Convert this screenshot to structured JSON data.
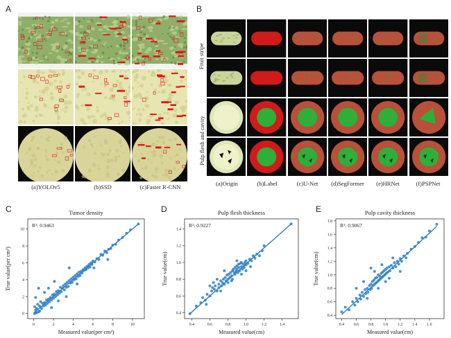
{
  "panel_letters": {
    "A": "A",
    "B": "B",
    "C": "C",
    "D": "D",
    "E": "E"
  },
  "panel_a": {
    "captions": [
      "(a)YOLOv5",
      "(b)SSD",
      "(c)Faster R-CNN"
    ],
    "rows": [
      "fruit-stripe",
      "pulp-surface",
      "pulp-cross-section"
    ]
  },
  "panel_b": {
    "row_labels": {
      "fruit_stripe": "Fruit stripe",
      "pulp": "Pulp flesh and cavity"
    },
    "captions": [
      "(a)Origin",
      "(b)Label",
      "(c)U-Net",
      "(d)SegFormer",
      "(e)HRNet",
      "(f)PSPNet"
    ],
    "colors": {
      "background": "#0a0a0a",
      "label_red": "#d11a1a",
      "pred_red": "#b8503a",
      "cavity_green": "#2fae3a"
    }
  },
  "chart_data": [
    {
      "type": "scatter",
      "title": "Tumor density",
      "xlabel": "Measured value(per cm²)",
      "ylabel": "True value(per cm²)",
      "annotation": "R²: 0.9463",
      "xlim": [
        -0.6,
        11.2
      ],
      "ylim": [
        -0.6,
        11.2
      ],
      "xticks": [
        0,
        2,
        4,
        6,
        8,
        10
      ],
      "yticks": [
        0,
        2,
        4,
        6,
        8,
        10
      ],
      "fit_line": [
        [
          0.0,
          0.05
        ],
        [
          10.6,
          10.6
        ]
      ],
      "points": [
        [
          0.1,
          0.0
        ],
        [
          0.2,
          0.1
        ],
        [
          0.2,
          0.4
        ],
        [
          0.3,
          0.6
        ],
        [
          0.1,
          0.8
        ],
        [
          0.4,
          1.1
        ],
        [
          0.5,
          0.2
        ],
        [
          0.6,
          0.9
        ],
        [
          0.3,
          0.1
        ],
        [
          0.7,
          1.4
        ],
        [
          0.8,
          0.6
        ],
        [
          0.9,
          1.2
        ],
        [
          1.0,
          0.9
        ],
        [
          1.1,
          1.3
        ],
        [
          1.2,
          1.0
        ],
        [
          0.6,
          0.3
        ],
        [
          1.3,
          1.6
        ],
        [
          1.4,
          1.2
        ],
        [
          1.5,
          1.7
        ],
        [
          1.6,
          1.4
        ],
        [
          1.7,
          1.9
        ],
        [
          1.8,
          1.6
        ],
        [
          1.9,
          2.2
        ],
        [
          2.0,
          1.8
        ],
        [
          2.1,
          2.3
        ],
        [
          2.2,
          2.0
        ],
        [
          2.3,
          2.6
        ],
        [
          2.4,
          2.2
        ],
        [
          2.5,
          2.7
        ],
        [
          2.6,
          2.4
        ],
        [
          2.7,
          3.1
        ],
        [
          2.8,
          2.6
        ],
        [
          2.9,
          3.0
        ],
        [
          3.0,
          3.3
        ],
        [
          3.1,
          2.8
        ],
        [
          3.2,
          3.5
        ],
        [
          3.3,
          3.1
        ],
        [
          3.4,
          3.7
        ],
        [
          3.5,
          3.2
        ],
        [
          3.6,
          3.9
        ],
        [
          3.7,
          3.6
        ],
        [
          3.8,
          4.1
        ],
        [
          3.9,
          3.7
        ],
        [
          4.0,
          4.3
        ],
        [
          4.1,
          4.0
        ],
        [
          4.2,
          4.5
        ],
        [
          4.3,
          4.1
        ],
        [
          4.4,
          4.7
        ],
        [
          4.5,
          4.4
        ],
        [
          4.6,
          4.9
        ],
        [
          4.7,
          4.5
        ],
        [
          4.8,
          5.0
        ],
        [
          4.9,
          4.8
        ],
        [
          5.0,
          5.2
        ],
        [
          5.1,
          5.1
        ],
        [
          5.2,
          5.4
        ],
        [
          5.3,
          5.2
        ],
        [
          5.4,
          5.6
        ],
        [
          5.5,
          5.4
        ],
        [
          5.6,
          5.8
        ],
        [
          5.7,
          5.5
        ],
        [
          5.8,
          6.0
        ],
        [
          5.9,
          5.8
        ],
        [
          6.0,
          6.2
        ],
        [
          6.2,
          6.1
        ],
        [
          6.4,
          6.5
        ],
        [
          6.6,
          6.4
        ],
        [
          6.8,
          7.0
        ],
        [
          7.0,
          6.9
        ],
        [
          7.2,
          7.4
        ],
        [
          7.4,
          7.2
        ],
        [
          7.6,
          7.6
        ],
        [
          7.8,
          7.7
        ],
        [
          8.0,
          8.1
        ],
        [
          8.3,
          8.2
        ],
        [
          8.6,
          8.7
        ],
        [
          9.0,
          9.0
        ],
        [
          9.4,
          9.5
        ],
        [
          9.8,
          9.9
        ],
        [
          10.6,
          10.6
        ],
        [
          1.5,
          3.0
        ],
        [
          3.3,
          2.0
        ],
        [
          2.1,
          3.8
        ],
        [
          3.6,
          5.4
        ],
        [
          0.5,
          3.0
        ],
        [
          1.1,
          2.5
        ],
        [
          4.4,
          3.5
        ],
        [
          6.1,
          5.4
        ],
        [
          7.5,
          6.4
        ],
        [
          2.5,
          1.5
        ],
        [
          1.8,
          0.7
        ],
        [
          0.2,
          1.9
        ]
      ]
    },
    {
      "type": "scatter",
      "title": "Pulp flesh thickness",
      "xlabel": "Measured value(cm)",
      "ylabel": "True value(cm)",
      "annotation": "R²: 0.9227",
      "xlim": [
        0.32,
        1.58
      ],
      "ylim": [
        0.33,
        1.52
      ],
      "xticks": [
        0.4,
        0.6,
        0.8,
        1.0,
        1.2,
        1.4
      ],
      "yticks": [
        0.4,
        0.6,
        0.8,
        1.0,
        1.2,
        1.4
      ],
      "fit_line": [
        [
          0.37,
          0.38
        ],
        [
          1.5,
          1.46
        ]
      ],
      "points": [
        [
          0.38,
          0.39
        ],
        [
          0.45,
          0.48
        ],
        [
          0.5,
          0.52
        ],
        [
          0.52,
          0.58
        ],
        [
          0.55,
          0.55
        ],
        [
          0.57,
          0.62
        ],
        [
          0.6,
          0.6
        ],
        [
          0.62,
          0.66
        ],
        [
          0.63,
          0.7
        ],
        [
          0.65,
          0.68
        ],
        [
          0.66,
          0.72
        ],
        [
          0.68,
          0.66
        ],
        [
          0.7,
          0.74
        ],
        [
          0.7,
          0.7
        ],
        [
          0.72,
          0.78
        ],
        [
          0.73,
          0.72
        ],
        [
          0.74,
          0.76
        ],
        [
          0.75,
          0.8
        ],
        [
          0.76,
          0.74
        ],
        [
          0.77,
          0.82
        ],
        [
          0.78,
          0.78
        ],
        [
          0.79,
          0.85
        ],
        [
          0.8,
          0.8
        ],
        [
          0.8,
          0.76
        ],
        [
          0.81,
          0.86
        ],
        [
          0.82,
          0.82
        ],
        [
          0.83,
          0.88
        ],
        [
          0.84,
          0.84
        ],
        [
          0.85,
          0.9
        ],
        [
          0.85,
          0.8
        ],
        [
          0.86,
          0.92
        ],
        [
          0.87,
          0.88
        ],
        [
          0.88,
          0.94
        ],
        [
          0.88,
          0.86
        ],
        [
          0.89,
          0.9
        ],
        [
          0.9,
          0.96
        ],
        [
          0.9,
          0.92
        ],
        [
          0.91,
          0.88
        ],
        [
          0.92,
          0.98
        ],
        [
          0.92,
          0.94
        ],
        [
          0.93,
          0.9
        ],
        [
          0.94,
          0.99
        ],
        [
          0.95,
          0.95
        ],
        [
          0.95,
          1.0
        ],
        [
          0.96,
          0.92
        ],
        [
          0.97,
          0.98
        ],
        [
          0.98,
          0.94
        ],
        [
          0.99,
          1.0
        ],
        [
          1.0,
          0.97
        ],
        [
          1.0,
          1.02
        ],
        [
          1.02,
          0.99
        ],
        [
          1.04,
          1.04
        ],
        [
          1.06,
          1.02
        ],
        [
          1.08,
          1.08
        ],
        [
          1.1,
          1.05
        ],
        [
          1.12,
          1.1
        ],
        [
          1.15,
          1.08
        ],
        [
          1.18,
          1.14
        ],
        [
          1.2,
          1.2
        ],
        [
          0.6,
          0.72
        ],
        [
          0.68,
          0.8
        ],
        [
          0.76,
          0.9
        ],
        [
          0.84,
          0.78
        ],
        [
          0.9,
          1.02
        ],
        [
          0.95,
          0.86
        ],
        [
          1.0,
          0.9
        ],
        [
          1.05,
          0.95
        ],
        [
          0.72,
          0.66
        ],
        [
          0.64,
          0.76
        ],
        [
          0.56,
          0.5
        ],
        [
          1.5,
          1.46
        ]
      ]
    },
    {
      "type": "scatter",
      "title": "Pulp cavity thickness",
      "xlabel": "Measured value(cm)",
      "ylabel": "True value(cm)",
      "annotation": "R²: 0.9067",
      "xlim": [
        0.32,
        1.8
      ],
      "ylim": [
        0.35,
        1.83
      ],
      "xticks": [
        0.4,
        0.6,
        0.8,
        1.0,
        1.2,
        1.4,
        1.6
      ],
      "yticks": [
        0.4,
        0.6,
        0.8,
        1.0,
        1.2,
        1.4,
        1.6,
        1.8
      ],
      "fit_line": [
        [
          0.4,
          0.41
        ],
        [
          1.7,
          1.72
        ]
      ],
      "points": [
        [
          0.4,
          0.45
        ],
        [
          0.45,
          0.52
        ],
        [
          0.5,
          0.48
        ],
        [
          0.55,
          0.6
        ],
        [
          0.58,
          0.55
        ],
        [
          0.6,
          0.65
        ],
        [
          0.62,
          0.6
        ],
        [
          0.65,
          0.7
        ],
        [
          0.66,
          0.64
        ],
        [
          0.68,
          0.74
        ],
        [
          0.7,
          0.68
        ],
        [
          0.72,
          0.78
        ],
        [
          0.73,
          0.72
        ],
        [
          0.75,
          0.8
        ],
        [
          0.76,
          0.74
        ],
        [
          0.78,
          0.84
        ],
        [
          0.79,
          0.78
        ],
        [
          0.8,
          0.86
        ],
        [
          0.81,
          0.8
        ],
        [
          0.82,
          0.9
        ],
        [
          0.83,
          0.84
        ],
        [
          0.84,
          0.92
        ],
        [
          0.85,
          0.86
        ],
        [
          0.86,
          0.95
        ],
        [
          0.87,
          0.88
        ],
        [
          0.88,
          0.96
        ],
        [
          0.89,
          0.9
        ],
        [
          0.9,
          1.0
        ],
        [
          0.91,
          0.92
        ],
        [
          0.92,
          0.98
        ],
        [
          0.93,
          0.94
        ],
        [
          0.94,
          1.02
        ],
        [
          0.95,
          0.96
        ],
        [
          0.96,
          1.04
        ],
        [
          0.97,
          0.98
        ],
        [
          0.98,
          1.06
        ],
        [
          0.99,
          1.0
        ],
        [
          1.0,
          1.08
        ],
        [
          1.01,
          1.02
        ],
        [
          1.02,
          1.1
        ],
        [
          1.03,
          1.04
        ],
        [
          1.05,
          1.12
        ],
        [
          1.06,
          1.06
        ],
        [
          1.08,
          1.14
        ],
        [
          1.1,
          1.1
        ],
        [
          1.12,
          1.18
        ],
        [
          1.14,
          1.12
        ],
        [
          1.16,
          1.2
        ],
        [
          1.18,
          1.16
        ],
        [
          1.2,
          1.24
        ],
        [
          1.22,
          1.2
        ],
        [
          1.25,
          1.28
        ],
        [
          1.28,
          1.25
        ],
        [
          1.3,
          1.32
        ],
        [
          1.35,
          1.38
        ],
        [
          1.4,
          1.42
        ],
        [
          1.45,
          1.48
        ],
        [
          1.5,
          1.55
        ],
        [
          1.55,
          1.56
        ],
        [
          1.6,
          1.65
        ],
        [
          1.7,
          1.75
        ],
        [
          0.7,
          0.9
        ],
        [
          0.8,
          1.1
        ],
        [
          0.9,
          0.8
        ],
        [
          1.0,
          0.9
        ],
        [
          1.1,
          1.25
        ],
        [
          0.6,
          0.8
        ],
        [
          1.2,
          1.05
        ],
        [
          0.85,
          1.05
        ],
        [
          0.95,
          1.15
        ],
        [
          1.05,
          0.95
        ],
        [
          0.75,
          0.65
        ]
      ]
    }
  ]
}
